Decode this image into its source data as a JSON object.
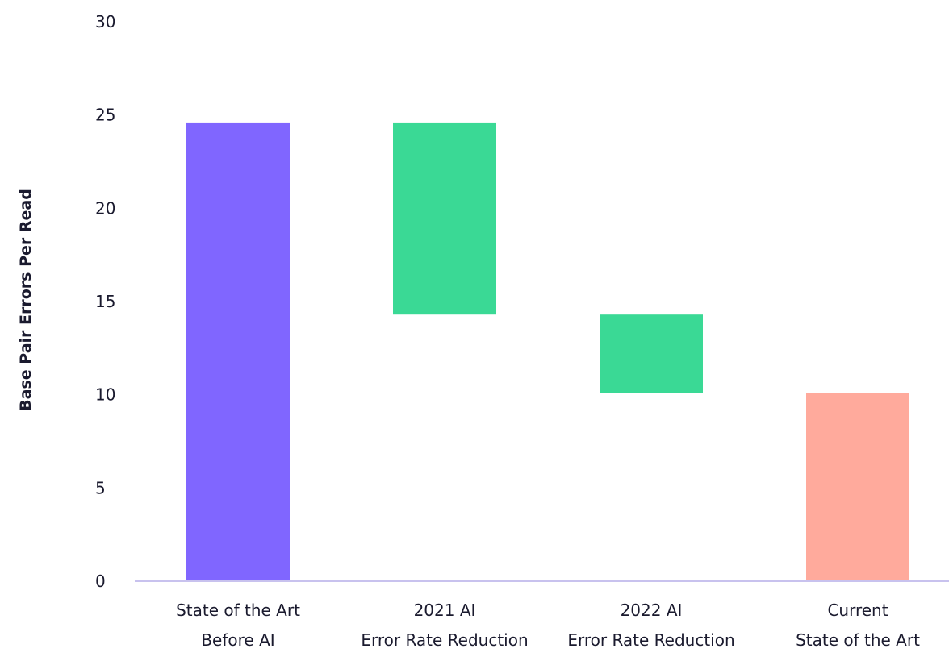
{
  "chart_data": {
    "type": "bar",
    "subtype": "waterfall",
    "title": "",
    "ylabel": "Base Pair Errors Per Read",
    "xlabel": "",
    "ylim": [
      0,
      30
    ],
    "yticks": [
      "0",
      "5",
      "10",
      "15",
      "20",
      "25",
      "30"
    ],
    "grid": false,
    "categories": [
      [
        "State of the Art",
        "Before AI"
      ],
      [
        "2021 AI",
        "Error Rate Reduction"
      ],
      [
        "2022 AI",
        "Error Rate Reduction"
      ],
      [
        "Current",
        "State of the Art"
      ]
    ],
    "bars": [
      {
        "category": "State of the Art Before AI",
        "start": 0,
        "end": 24.6,
        "kind": "total"
      },
      {
        "category": "2021 AI Error Rate Reduction",
        "start": 14.3,
        "end": 24.6,
        "kind": "decrease"
      },
      {
        "category": "2022 AI Error Rate Reduction",
        "start": 10.1,
        "end": 14.3,
        "kind": "decrease"
      },
      {
        "category": "Current State of the Art",
        "start": 0,
        "end": 10.1,
        "kind": "total"
      }
    ],
    "colors": {
      "bar_0": "#8066ff",
      "bar_1": "#3ad995",
      "bar_2": "#3ad995",
      "bar_3": "#ffaa9c",
      "axis": "#c8c2ee"
    }
  }
}
